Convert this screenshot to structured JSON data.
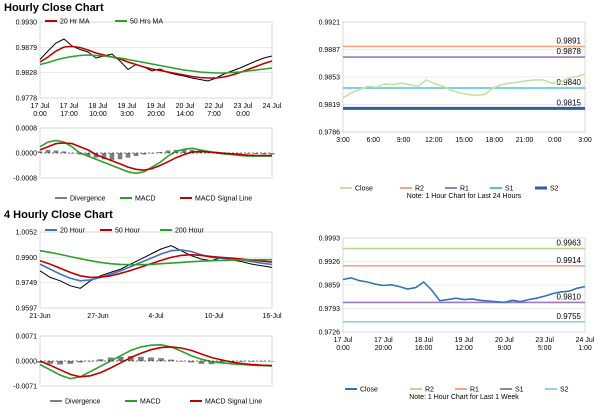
{
  "sections": [
    {
      "title": "Hourly Close Chart"
    },
    {
      "title": "4 Hourly Close Chart"
    }
  ],
  "chart_data": [
    {
      "id": "h_price",
      "type": "line",
      "legend": [
        "20 Hr MA",
        "50 Hrs MA"
      ],
      "y_ticks": [
        "0.9930",
        "0.9879",
        "0.9828",
        "0.9778"
      ],
      "ylim": [
        0.9778,
        0.993
      ],
      "x_labels": [
        "17 Jul\n0:00",
        "17 Jul\n17:00",
        "18 Jul\n10:00",
        "19 Jul\n3:00",
        "19 Jul\n20:00",
        "20 Jul\n14:00",
        "22 Jul\n7:00",
        "23 Jul\n0:00",
        "24 Jul"
      ],
      "series": [
        {
          "name": "Price",
          "color": "#000000",
          "values": [
            0.9855,
            0.9872,
            0.9888,
            0.9896,
            0.9882,
            0.9875,
            0.987,
            0.9858,
            0.9862,
            0.9866,
            0.9852,
            0.9835,
            0.9845,
            0.984,
            0.9832,
            0.9836,
            0.9829,
            0.9825,
            0.9822,
            0.9818,
            0.9815,
            0.9812,
            0.9818,
            0.9826,
            0.9832,
            0.9838,
            0.9845,
            0.9852,
            0.9858,
            0.9862
          ]
        },
        {
          "name": "20 Hr MA",
          "color": "#c00000",
          "values": [
            0.985,
            0.986,
            0.9872,
            0.988,
            0.9881,
            0.9879,
            0.9874,
            0.9868,
            0.9864,
            0.986,
            0.9856,
            0.985,
            0.9845,
            0.984,
            0.9836,
            0.9833,
            0.983,
            0.9827,
            0.9824,
            0.9821,
            0.9819,
            0.9818,
            0.9818,
            0.982,
            0.9824,
            0.9829,
            0.9835,
            0.9841,
            0.9847,
            0.9852
          ]
        },
        {
          "name": "50 Hrs MA",
          "color": "#2ca02c",
          "values": [
            0.9845,
            0.9849,
            0.9854,
            0.9858,
            0.9861,
            0.9863,
            0.9864,
            0.9863,
            0.9862,
            0.986,
            0.9858,
            0.9855,
            0.9852,
            0.9849,
            0.9846,
            0.9843,
            0.984,
            0.9837,
            0.9834,
            0.9832,
            0.983,
            0.9829,
            0.9828,
            0.9828,
            0.9829,
            0.983,
            0.9832,
            0.9834,
            0.9836,
            0.9838
          ]
        }
      ]
    },
    {
      "id": "h_macd",
      "type": "line",
      "legend": [
        "Divergence",
        "MACD",
        "MACD Signal Line"
      ],
      "y_ticks": [
        "0.0008",
        "0.0000",
        "-0.0008"
      ],
      "ylim": [
        -0.0008,
        0.0008
      ],
      "series": [
        {
          "name": "Divergence",
          "color": "#7f7f7f",
          "values": [
            5e-05,
            0.0001,
            8e-05,
            5e-05,
            0.0,
            -5e-05,
            -0.0001,
            -0.00015,
            -0.0002,
            -0.00022,
            -0.0002,
            -0.00015,
            -0.0001,
            -5e-05,
            0.0,
            3e-05,
            8e-05,
            0.0001,
            0.00012,
            0.0001,
            8e-05,
            5e-05,
            3e-05,
            2e-05,
            0.0,
            0.0,
            -2e-05,
            -3e-05,
            -4e-05,
            -5e-05
          ]
        },
        {
          "name": "MACD",
          "color": "#2ca02c",
          "values": [
            0.0002,
            0.00035,
            0.0004,
            0.00035,
            0.0002,
            0.0,
            -0.0001,
            -0.0002,
            -0.0003,
            -0.0004,
            -0.0005,
            -0.0006,
            -0.00065,
            -0.0006,
            -0.00045,
            -0.0003,
            -0.0001,
            5e-05,
            0.00012,
            0.00015,
            0.0001,
            5e-05,
            0.0,
            -3e-05,
            -5e-05,
            -8e-05,
            -0.0001,
            -0.0001,
            -0.0001,
            -0.0001
          ]
        },
        {
          "name": "MACD Signal Line",
          "color": "#c00000",
          "values": [
            0.0001,
            0.0002,
            0.0003,
            0.00032,
            0.0003,
            0.0002,
            0.0001,
            -5e-05,
            -0.00015,
            -0.00025,
            -0.00035,
            -0.00045,
            -0.00052,
            -0.00055,
            -0.0005,
            -0.0004,
            -0.00028,
            -0.00015,
            -5e-05,
            3e-05,
            5e-05,
            4e-05,
            2e-05,
            -1e-05,
            -3e-05,
            -5e-05,
            -7e-05,
            -8e-05,
            -8e-05,
            -8e-05
          ]
        }
      ]
    },
    {
      "id": "h_close",
      "type": "line",
      "y_ticks": [
        "0.9921",
        "0.9887",
        "0.9853",
        "0.9819",
        "0.9786"
      ],
      "ylim": [
        0.9786,
        0.9921
      ],
      "x_labels": [
        "3:00",
        "6:00",
        "9:00",
        "12:00",
        "15:00",
        "18:00",
        "21:00",
        "0:00",
        "3:00"
      ],
      "levels": [
        {
          "name": "R2",
          "value": 0.9891,
          "label": "0.9891",
          "color": "#f4a582"
        },
        {
          "name": "R1",
          "value": 0.9878,
          "label": "0.9878",
          "color": "#9e7bb5"
        },
        {
          "name": "S1",
          "value": 0.984,
          "label": "0.9840",
          "color": "#4fc3d9"
        },
        {
          "name": "S2",
          "value": 0.9815,
          "label": "0.9815",
          "color": "#2e5fa3"
        }
      ],
      "series": [
        {
          "name": "Close",
          "color": "#c5e0a5",
          "values": [
            0.9828,
            0.9834,
            0.9838,
            0.9842,
            0.9841,
            0.9845,
            0.9844,
            0.9846,
            0.9844,
            0.9842,
            0.985,
            0.9845,
            0.9842,
            0.9837,
            0.9834,
            0.9832,
            0.9831,
            0.9832,
            0.984,
            0.9844,
            0.9846,
            0.9847,
            0.9849,
            0.985,
            0.985,
            0.9846,
            0.9847,
            0.9852,
            0.9854,
            0.9857
          ]
        }
      ],
      "legend": [
        "Close",
        "R2",
        "R1",
        "S1",
        "S2"
      ],
      "note": "Note: 1 Hour Chart for Last 24 Hours"
    },
    {
      "id": "h4_price",
      "type": "line",
      "legend": [
        "20 Hour",
        "50 Hour",
        "200 Hour"
      ],
      "y_ticks": [
        "1.0052",
        "0.9900",
        "0.9749",
        "0.9597"
      ],
      "ylim": [
        0.9597,
        1.0052
      ],
      "x_labels": [
        "21-Jun",
        "27-Jun",
        "4-Jul",
        "10-Jul",
        "16-Jul"
      ],
      "series": [
        {
          "name": "Price",
          "color": "#000000",
          "values": [
            0.982,
            0.978,
            0.976,
            0.973,
            0.9715,
            0.976,
            0.979,
            0.981,
            0.983,
            0.986,
            0.989,
            0.992,
            0.995,
            0.997,
            0.994,
            0.991,
            0.989,
            0.988,
            0.99,
            0.9885,
            0.9875,
            0.986,
            0.985,
            0.984
          ]
        },
        {
          "name": "20 Hour",
          "color": "#4472c4",
          "values": [
            0.986,
            0.983,
            0.98,
            0.9775,
            0.976,
            0.9765,
            0.978,
            0.98,
            0.982,
            0.9845,
            0.987,
            0.9895,
            0.992,
            0.994,
            0.9945,
            0.9935,
            0.9915,
            0.99,
            0.9895,
            0.989,
            0.9885,
            0.9875,
            0.9865,
            0.9858
          ]
        },
        {
          "name": "50 Hour",
          "color": "#c00000",
          "values": [
            0.988,
            0.986,
            0.9835,
            0.981,
            0.979,
            0.978,
            0.9782,
            0.979,
            0.9805,
            0.9822,
            0.9842,
            0.9862,
            0.9882,
            0.99,
            0.9912,
            0.9916,
            0.9912,
            0.9905,
            0.99,
            0.9895,
            0.989,
            0.9884,
            0.9878,
            0.9872
          ]
        },
        {
          "name": "200 Hour",
          "color": "#2ca02c",
          "values": [
            0.994,
            0.993,
            0.9918,
            0.9905,
            0.9892,
            0.988,
            0.987,
            0.9862,
            0.9858,
            0.9856,
            0.9856,
            0.9858,
            0.9862,
            0.9866,
            0.987,
            0.9874,
            0.9877,
            0.988,
            0.9882,
            0.9884,
            0.9885,
            0.9886,
            0.9886,
            0.9886
          ]
        }
      ]
    },
    {
      "id": "h4_macd",
      "type": "line",
      "legend": [
        "Divergence",
        "MACD",
        "MACD Signal Line"
      ],
      "y_ticks": [
        "0.0071",
        "0.0000",
        "-0.0071"
      ],
      "ylim": [
        -0.0071,
        0.0071
      ],
      "series": [
        {
          "name": "Divergence",
          "color": "#7f7f7f",
          "values": [
            -0.0005,
            -0.0008,
            -0.001,
            -0.0008,
            -0.0004,
            0.0,
            0.0005,
            0.001,
            0.0012,
            0.0014,
            0.0012,
            0.001,
            0.0008,
            0.0004,
            0.0,
            -0.0004,
            -0.0008,
            -0.0009,
            -0.0006,
            -0.0003,
            -0.0002,
            -0.0002,
            -0.0001,
            -0.0001
          ]
        },
        {
          "name": "MACD",
          "color": "#2ca02c",
          "values": [
            -0.001,
            -0.0025,
            -0.004,
            -0.005,
            -0.0045,
            -0.003,
            -0.0015,
            0.0,
            0.0015,
            0.003,
            0.004,
            0.0045,
            0.0046,
            0.004,
            0.0028,
            0.0015,
            0.0005,
            -0.0002,
            -0.0005,
            -0.0008,
            -0.001,
            -0.0012,
            -0.0013,
            -0.0014
          ]
        },
        {
          "name": "MACD Signal Line",
          "color": "#c00000",
          "values": [
            0.0,
            -0.0012,
            -0.0025,
            -0.0038,
            -0.0045,
            -0.0042,
            -0.0033,
            -0.002,
            -0.0005,
            0.001,
            0.0022,
            0.0032,
            0.0038,
            0.004,
            0.0037,
            0.003,
            0.002,
            0.001,
            0.0003,
            -0.0003,
            -0.0007,
            -0.001,
            -0.0012,
            -0.0013
          ]
        }
      ]
    },
    {
      "id": "h4_close",
      "type": "line",
      "y_ticks": [
        "0.9993",
        "0.9926",
        "0.9859",
        "0.9793",
        "0.9726"
      ],
      "ylim": [
        0.9726,
        0.9993
      ],
      "x_labels": [
        "17 Jul\n0:00",
        "17 Jul\n20:00",
        "18 Jul\n16:00",
        "19 Jul\n12:00",
        "20 Jul\n9:00",
        "23 Jul\n5:00",
        "24 Jul\n1:00"
      ],
      "levels": [
        {
          "name": "R2",
          "value": 0.9963,
          "label": "0.9963",
          "color": "#b7d98f"
        },
        {
          "name": "R1",
          "value": 0.9914,
          "label": "0.9914",
          "color": "#f4a582"
        },
        {
          "name": "S1",
          "value": 0.981,
          "label": "0.9810",
          "color": "#9e7bb5"
        },
        {
          "name": "S2",
          "value": 0.9755,
          "label": "0.9755",
          "color": "#90d3e0"
        }
      ],
      "series": [
        {
          "name": "Close",
          "color": "#2e75b6",
          "values": [
            0.9875,
            0.988,
            0.9872,
            0.9868,
            0.9862,
            0.9858,
            0.986,
            0.9855,
            0.9848,
            0.9852,
            0.9868,
            0.9845,
            0.9815,
            0.9818,
            0.9822,
            0.9818,
            0.982,
            0.9816,
            0.9814,
            0.9812,
            0.981,
            0.9816,
            0.9812,
            0.9818,
            0.9822,
            0.9828,
            0.9835,
            0.984,
            0.9842,
            0.985,
            0.9855
          ]
        }
      ],
      "legend": [
        "Close",
        "R2",
        "R1",
        "S1",
        "S2"
      ],
      "note": "Note: 1 Hour Chart for Last 1 Week"
    }
  ]
}
